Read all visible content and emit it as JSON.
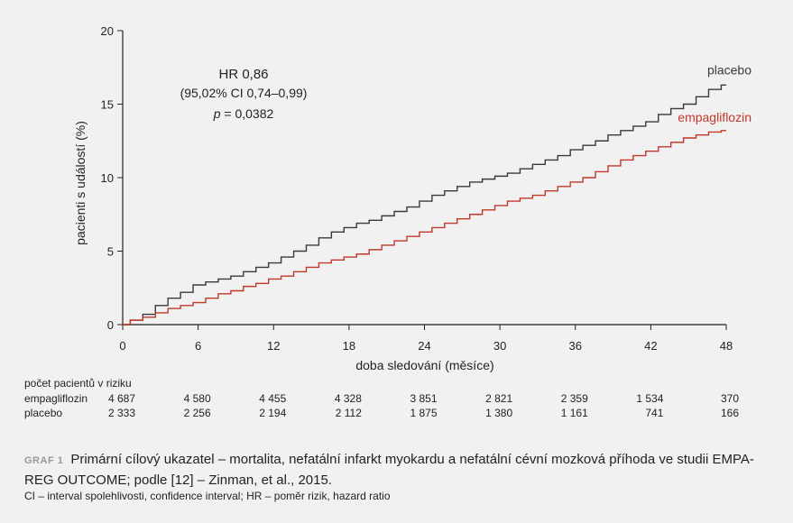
{
  "chart_data": {
    "type": "line",
    "xlabel": "doba sledování (měsíce)",
    "ylabel": "pacienti s událostí (%)",
    "xlim": [
      0,
      48
    ],
    "ylim": [
      0,
      20
    ],
    "xticks": [
      "0",
      "6",
      "12",
      "18",
      "24",
      "30",
      "36",
      "42",
      "48"
    ],
    "yticks": [
      "0",
      "5",
      "10",
      "15",
      "20"
    ],
    "grid": false,
    "annotation": {
      "line1": "HR 0,86",
      "line2": "(95,02% CI 0,74–0,99)",
      "line3_italic": "p",
      "line3_rest": " = 0,0382"
    },
    "series": [
      {
        "name": "placebo",
        "color": "#3a3a3a",
        "x": [
          0,
          1,
          2,
          3,
          4,
          5,
          6,
          7,
          8,
          9,
          10,
          11,
          12,
          13,
          14,
          15,
          16,
          17,
          18,
          19,
          20,
          21,
          22,
          23,
          24,
          25,
          26,
          27,
          28,
          29,
          30,
          31,
          32,
          33,
          34,
          35,
          36,
          37,
          38,
          39,
          40,
          41,
          42,
          43,
          44,
          45,
          46,
          47,
          48
        ],
        "y": [
          0,
          0.3,
          0.7,
          1.3,
          1.8,
          2.2,
          2.7,
          2.9,
          3.1,
          3.3,
          3.6,
          3.9,
          4.2,
          4.6,
          5.0,
          5.4,
          5.9,
          6.3,
          6.6,
          6.9,
          7.1,
          7.4,
          7.7,
          8.0,
          8.4,
          8.8,
          9.1,
          9.4,
          9.7,
          9.9,
          10.1,
          10.3,
          10.6,
          10.9,
          11.2,
          11.5,
          11.9,
          12.2,
          12.5,
          12.9,
          13.2,
          13.5,
          13.8,
          14.3,
          14.7,
          15.0,
          15.5,
          16.0,
          16.3
        ]
      },
      {
        "name": "empagliflozin",
        "color": "#c0392b",
        "x": [
          0,
          1,
          2,
          3,
          4,
          5,
          6,
          7,
          8,
          9,
          10,
          11,
          12,
          13,
          14,
          15,
          16,
          17,
          18,
          19,
          20,
          21,
          22,
          23,
          24,
          25,
          26,
          27,
          28,
          29,
          30,
          31,
          32,
          33,
          34,
          35,
          36,
          37,
          38,
          39,
          40,
          41,
          42,
          43,
          44,
          45,
          46,
          47,
          48
        ],
        "y": [
          0,
          0.3,
          0.5,
          0.8,
          1.1,
          1.3,
          1.5,
          1.8,
          2.1,
          2.3,
          2.6,
          2.8,
          3.1,
          3.3,
          3.6,
          3.9,
          4.2,
          4.4,
          4.6,
          4.8,
          5.1,
          5.4,
          5.7,
          6.0,
          6.3,
          6.6,
          6.9,
          7.2,
          7.5,
          7.8,
          8.1,
          8.4,
          8.6,
          8.8,
          9.1,
          9.4,
          9.7,
          10.0,
          10.4,
          10.8,
          11.2,
          11.5,
          11.8,
          12.1,
          12.4,
          12.7,
          12.9,
          13.1,
          13.2
        ]
      }
    ]
  },
  "risk_table": {
    "title": "počet pacientů v riziku",
    "months": [
      0,
      6,
      12,
      18,
      24,
      30,
      36,
      42,
      48
    ],
    "rows": [
      {
        "label": "empagliflozin",
        "values": [
          "4 687",
          "4 580",
          "4 455",
          "4 328",
          "3 851",
          "2 821",
          "2 359",
          "1 534",
          "370"
        ]
      },
      {
        "label": "placebo",
        "values": [
          "2 333",
          "2 256",
          "2 194",
          "2 112",
          "1 875",
          "1 380",
          "1 161",
          "741",
          "166"
        ]
      }
    ]
  },
  "caption": {
    "label": "GRAF 1",
    "text": "Primární cílový ukazatel – mortalita, nefatální infarkt myokardu a nefatální cévní mozková příhoda ve studii EMPA-REG OUTCOME; podle [12] – Zinman, et al., 2015."
  },
  "footnote": "CI – interval spolehlivosti, confidence interval; HR – poměr rizik, hazard ratio"
}
